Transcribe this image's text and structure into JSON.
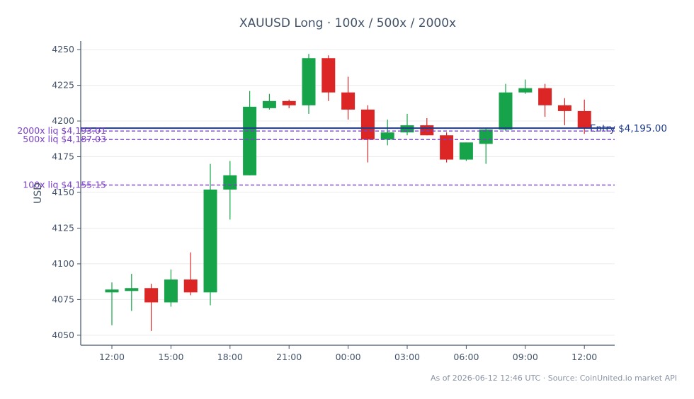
{
  "chart_data": {
    "type": "candlestick",
    "title": "XAUUSD Long · 100x / 500x / 2000x",
    "ylabel": "USD",
    "xlabel": "",
    "ylim": [
      4043,
      4256
    ],
    "yticks": [
      4050,
      4075,
      4100,
      4125,
      4150,
      4175,
      4200,
      4225,
      4250
    ],
    "xticks": [
      {
        "hour_index": 0,
        "label": "12:00"
      },
      {
        "hour_index": 3,
        "label": "15:00"
      },
      {
        "hour_index": 6,
        "label": "18:00"
      },
      {
        "hour_index": 9,
        "label": "21:00"
      },
      {
        "hour_index": 12,
        "label": "00:00"
      },
      {
        "hour_index": 15,
        "label": "03:00"
      },
      {
        "hour_index": 18,
        "label": "06:00"
      },
      {
        "hour_index": 21,
        "label": "09:00"
      },
      {
        "hour_index": 24,
        "label": "12:00"
      }
    ],
    "grid": true,
    "up_color": "#16a34a",
    "down_color": "#dc2626",
    "candles": [
      {
        "o": 4080,
        "h": 4087,
        "l": 4057,
        "c": 4082
      },
      {
        "o": 4081,
        "h": 4093,
        "l": 4067,
        "c": 4083
      },
      {
        "o": 4083,
        "h": 4086,
        "l": 4053,
        "c": 4073
      },
      {
        "o": 4073,
        "h": 4096,
        "l": 4070,
        "c": 4089
      },
      {
        "o": 4089,
        "h": 4108,
        "l": 4078,
        "c": 4080
      },
      {
        "o": 4080,
        "h": 4170,
        "l": 4071,
        "c": 4152
      },
      {
        "o": 4152,
        "h": 4172,
        "l": 4131,
        "c": 4162
      },
      {
        "o": 4162,
        "h": 4221,
        "l": 4162,
        "c": 4210
      },
      {
        "o": 4209,
        "h": 4219,
        "l": 4208,
        "c": 4214
      },
      {
        "o": 4214,
        "h": 4215,
        "l": 4209,
        "c": 4211
      },
      {
        "o": 4211,
        "h": 4247,
        "l": 4205,
        "c": 4244
      },
      {
        "o": 4244,
        "h": 4246,
        "l": 4214,
        "c": 4220
      },
      {
        "o": 4220,
        "h": 4231,
        "l": 4201,
        "c": 4208
      },
      {
        "o": 4208,
        "h": 4211,
        "l": 4171,
        "c": 4187
      },
      {
        "o": 4187,
        "h": 4201,
        "l": 4183,
        "c": 4192
      },
      {
        "o": 4192,
        "h": 4205,
        "l": 4190,
        "c": 4197
      },
      {
        "o": 4197,
        "h": 4202,
        "l": 4190,
        "c": 4190
      },
      {
        "o": 4190,
        "h": 4192,
        "l": 4171,
        "c": 4173
      },
      {
        "o": 4173,
        "h": 4185,
        "l": 4172,
        "c": 4185
      },
      {
        "o": 4184,
        "h": 4195,
        "l": 4170,
        "c": 4194
      },
      {
        "o": 4194,
        "h": 4226,
        "l": 4193,
        "c": 4220
      },
      {
        "o": 4220,
        "h": 4229,
        "l": 4219,
        "c": 4223
      },
      {
        "o": 4223,
        "h": 4226,
        "l": 4203,
        "c": 4211
      },
      {
        "o": 4211,
        "h": 4216,
        "l": 4197,
        "c": 4207
      },
      {
        "o": 4207,
        "h": 4215,
        "l": 4191,
        "c": 4195
      }
    ],
    "reference_lines": [
      {
        "label": "Entry $4,195.00",
        "value": 4195.0,
        "color": "#1e3a8a",
        "style": "solid"
      },
      {
        "label": "2000x liq $4,193.01",
        "value": 4193.01,
        "color": "#7b3fc9",
        "style": "dashed"
      },
      {
        "label": "500x liq $4,187.03",
        "value": 4187.03,
        "color": "#7b3fc9",
        "style": "dashed"
      },
      {
        "label": "100x liq $4,155.15",
        "value": 4155.15,
        "color": "#7b3fc9",
        "style": "dashed"
      }
    ]
  },
  "footer": "As of 2026-06-12 12:46 UTC · Source: CoinUnited.io market API"
}
